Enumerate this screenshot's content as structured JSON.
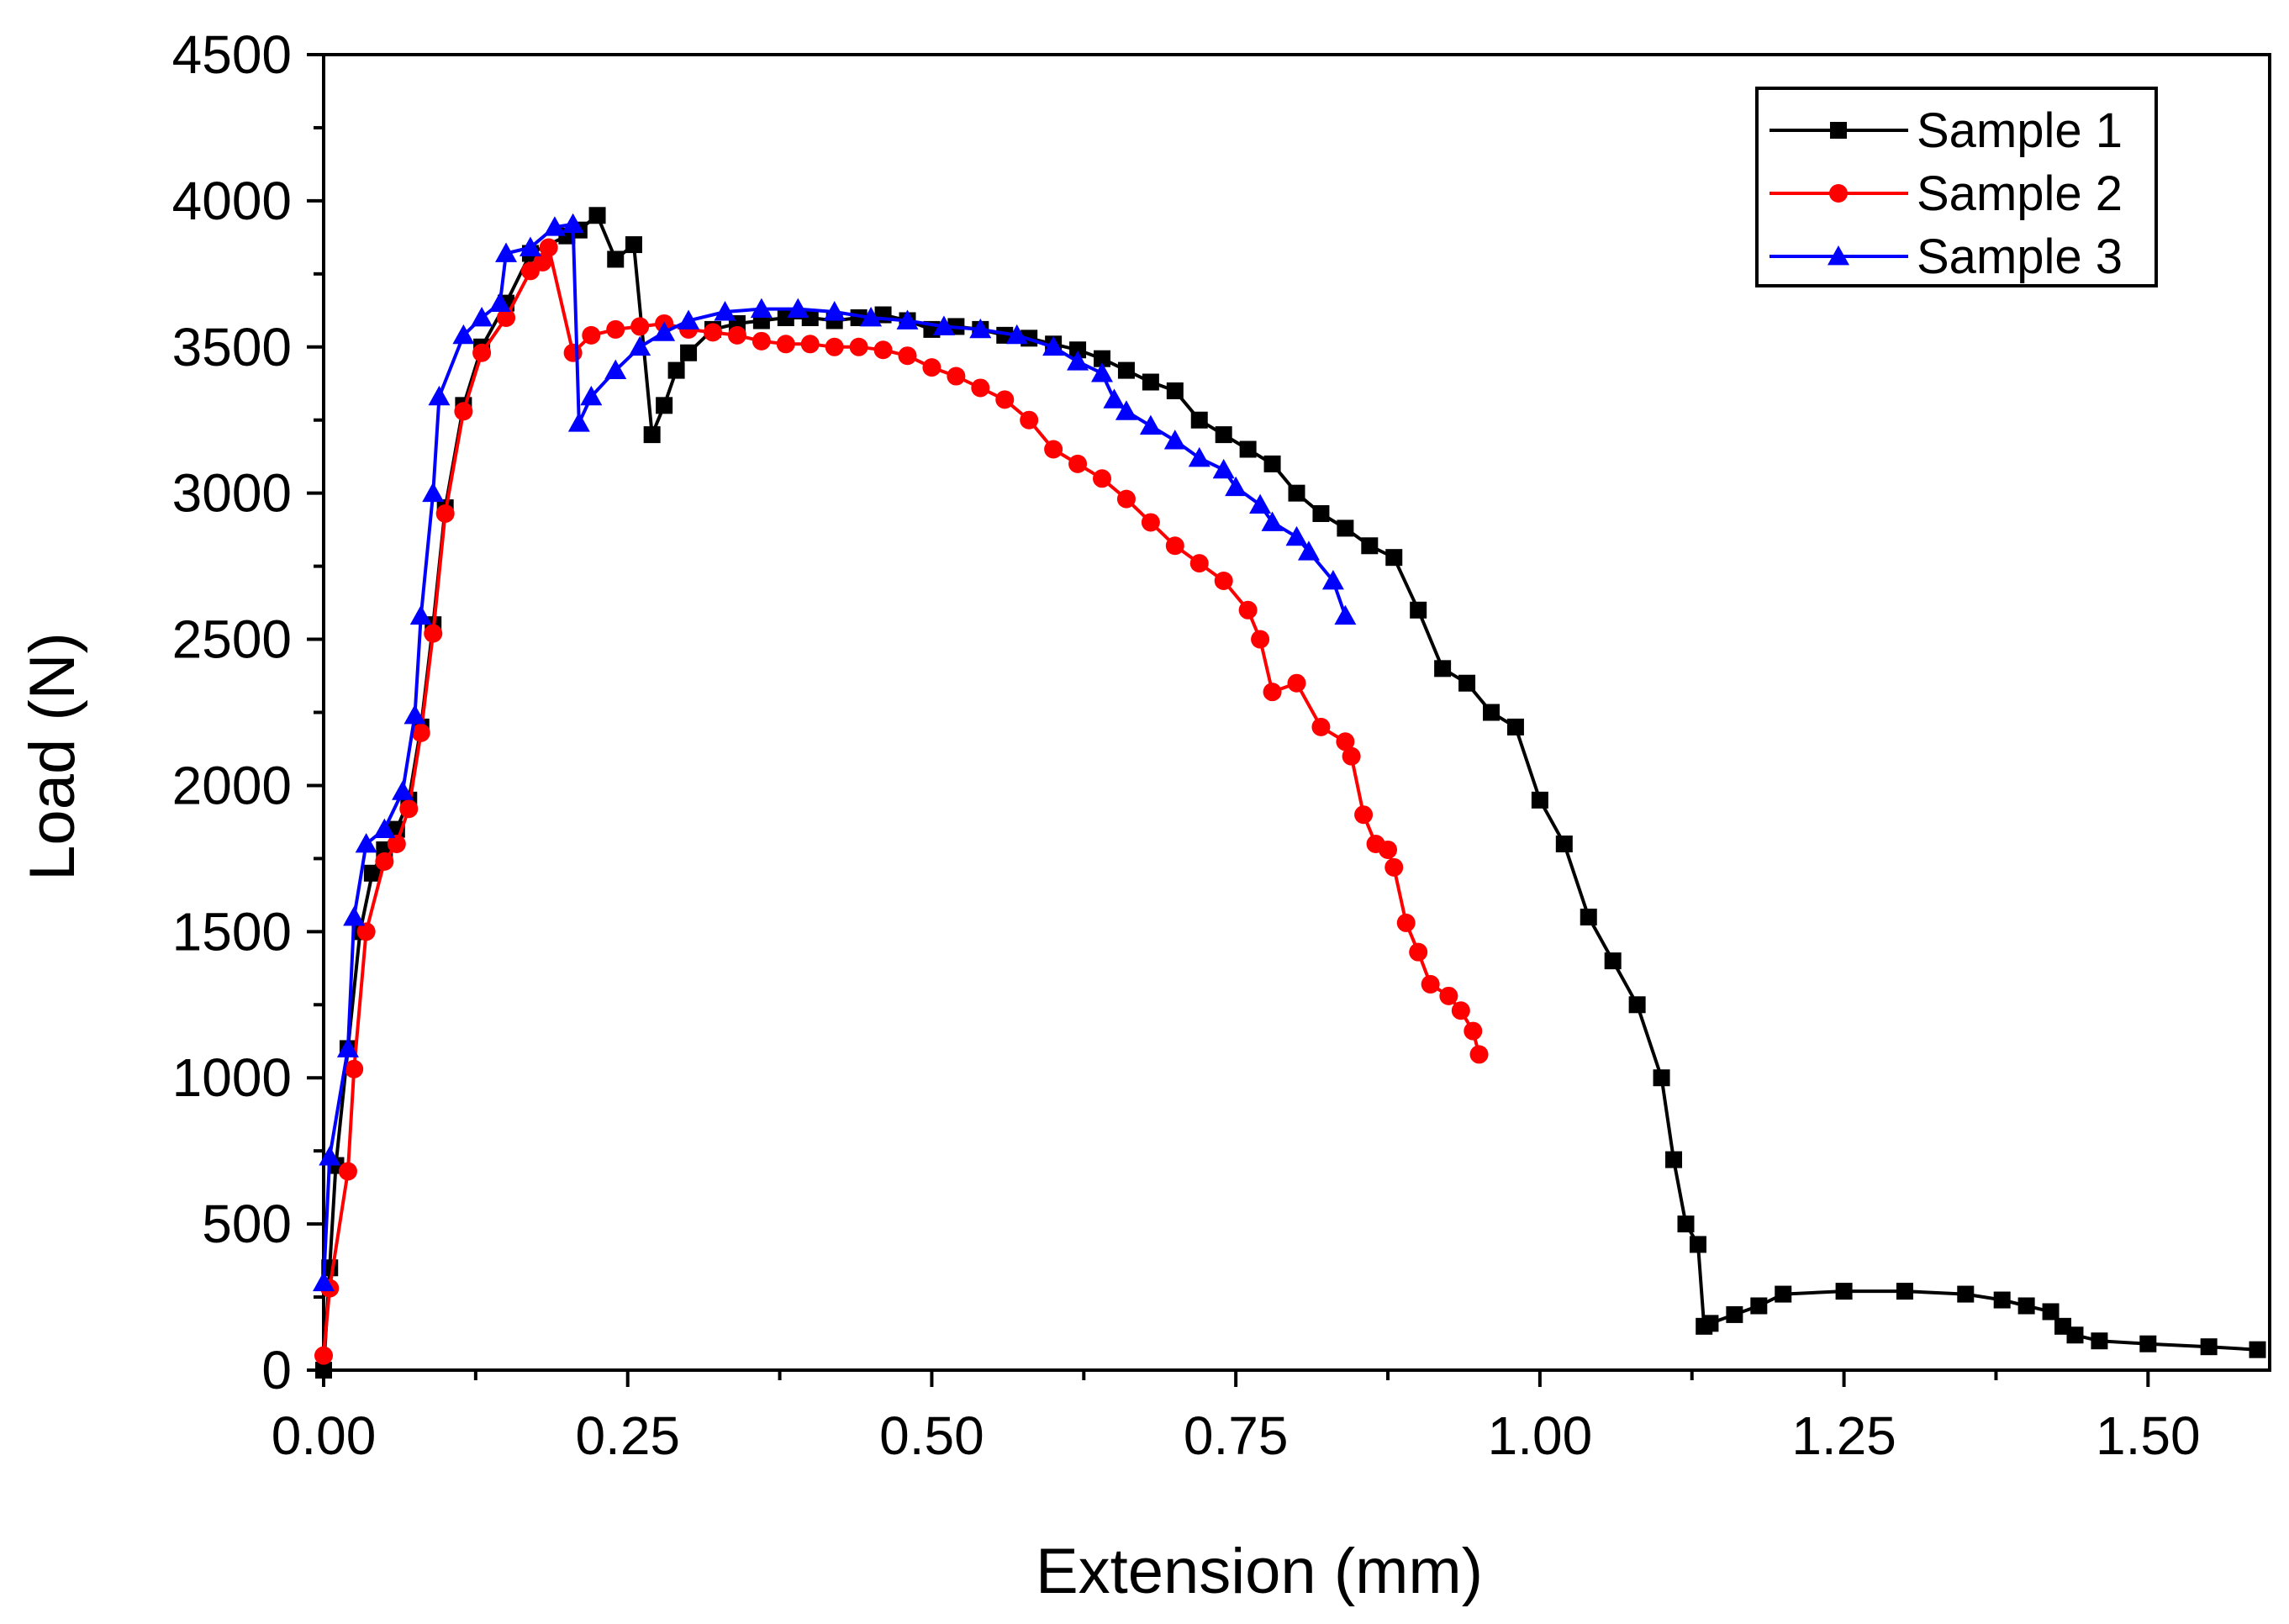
{
  "chart_data": {
    "type": "line",
    "title": "",
    "xlabel": "Extension (mm)",
    "ylabel": "Load (N)",
    "xlim": [
      0,
      1.6
    ],
    "ylim": [
      0,
      4500
    ],
    "xticks": [
      0,
      0.25,
      0.5,
      0.75,
      1.0,
      1.25,
      1.5
    ],
    "xtick_labels": [
      "0.00",
      "0.25",
      "0.50",
      "0.75",
      "1.00",
      "1.25",
      "1.50"
    ],
    "yticks": [
      0,
      500,
      1000,
      1500,
      2000,
      2500,
      3000,
      3500,
      4000,
      4500
    ],
    "ytick_labels": [
      "0",
      "500",
      "1000",
      "1500",
      "2000",
      "2500",
      "3000",
      "3500",
      "4000",
      "4500"
    ],
    "grid": false,
    "legend_position": "top-right",
    "series": [
      {
        "name": "Sample 1",
        "color": "#000000",
        "marker": "square",
        "x": [
          0.0,
          0.005,
          0.01,
          0.02,
          0.03,
          0.04,
          0.05,
          0.06,
          0.07,
          0.08,
          0.09,
          0.1,
          0.115,
          0.13,
          0.15,
          0.17,
          0.2,
          0.21,
          0.225,
          0.24,
          0.255,
          0.27,
          0.28,
          0.29,
          0.3,
          0.32,
          0.34,
          0.36,
          0.38,
          0.4,
          0.42,
          0.44,
          0.46,
          0.48,
          0.5,
          0.52,
          0.54,
          0.56,
          0.58,
          0.6,
          0.62,
          0.64,
          0.66,
          0.68,
          0.7,
          0.72,
          0.74,
          0.76,
          0.78,
          0.8,
          0.82,
          0.84,
          0.86,
          0.88,
          0.9,
          0.92,
          0.94,
          0.96,
          0.98,
          1.0,
          1.02,
          1.04,
          1.06,
          1.08,
          1.1,
          1.11,
          1.12,
          1.13,
          1.135,
          1.14,
          1.16,
          1.18,
          1.2,
          1.25,
          1.3,
          1.35,
          1.38,
          1.4,
          1.42,
          1.43,
          1.44,
          1.46,
          1.5,
          1.55,
          1.59
        ],
        "values": [
          0,
          350,
          700,
          1100,
          1500,
          1700,
          1780,
          1850,
          1950,
          2200,
          2550,
          2950,
          3300,
          3500,
          3650,
          3820,
          3880,
          3900,
          3950,
          3800,
          3850,
          3200,
          3300,
          3420,
          3480,
          3560,
          3580,
          3590,
          3600,
          3600,
          3590,
          3600,
          3610,
          3590,
          3560,
          3570,
          3560,
          3540,
          3530,
          3510,
          3490,
          3460,
          3420,
          3380,
          3350,
          3250,
          3200,
          3150,
          3100,
          3000,
          2930,
          2880,
          2820,
          2780,
          2600,
          2400,
          2350,
          2250,
          2200,
          1950,
          1800,
          1550,
          1400,
          1250,
          1000,
          720,
          500,
          430,
          150,
          160,
          190,
          220,
          260,
          270,
          270,
          260,
          240,
          220,
          200,
          150,
          120,
          100,
          90,
          80,
          70
        ]
      },
      {
        "name": "Sample 2",
        "color": "#ff0000",
        "marker": "circle",
        "x": [
          0.0,
          0.005,
          0.02,
          0.025,
          0.035,
          0.05,
          0.06,
          0.07,
          0.08,
          0.09,
          0.1,
          0.115,
          0.13,
          0.15,
          0.17,
          0.18,
          0.185,
          0.205,
          0.22,
          0.24,
          0.26,
          0.28,
          0.3,
          0.32,
          0.34,
          0.36,
          0.38,
          0.4,
          0.42,
          0.44,
          0.46,
          0.48,
          0.5,
          0.52,
          0.54,
          0.56,
          0.58,
          0.6,
          0.62,
          0.64,
          0.66,
          0.68,
          0.7,
          0.72,
          0.74,
          0.76,
          0.77,
          0.78,
          0.8,
          0.82,
          0.84,
          0.845,
          0.855,
          0.865,
          0.875,
          0.88,
          0.89,
          0.9,
          0.91,
          0.925,
          0.935,
          0.945,
          0.95
        ],
        "values": [
          50,
          280,
          680,
          1030,
          1500,
          1740,
          1800,
          1920,
          2180,
          2520,
          2930,
          3280,
          3480,
          3600,
          3760,
          3790,
          3840,
          3480,
          3540,
          3560,
          3570,
          3580,
          3560,
          3550,
          3540,
          3520,
          3510,
          3510,
          3500,
          3500,
          3490,
          3470,
          3430,
          3400,
          3360,
          3320,
          3250,
          3150,
          3100,
          3050,
          2980,
          2900,
          2820,
          2760,
          2700,
          2600,
          2500,
          2320,
          2350,
          2200,
          2150,
          2100,
          1900,
          1800,
          1780,
          1720,
          1530,
          1430,
          1320,
          1280,
          1230,
          1160,
          1080
        ]
      },
      {
        "name": "Sample 3",
        "color": "#0000ff",
        "marker": "triangle",
        "x": [
          0.0,
          0.005,
          0.02,
          0.025,
          0.035,
          0.05,
          0.065,
          0.075,
          0.08,
          0.09,
          0.095,
          0.115,
          0.13,
          0.145,
          0.15,
          0.17,
          0.19,
          0.205,
          0.21,
          0.22,
          0.24,
          0.26,
          0.28,
          0.3,
          0.33,
          0.36,
          0.39,
          0.42,
          0.45,
          0.48,
          0.51,
          0.54,
          0.57,
          0.6,
          0.62,
          0.64,
          0.65,
          0.66,
          0.68,
          0.7,
          0.72,
          0.74,
          0.75,
          0.77,
          0.78,
          0.8,
          0.81,
          0.83,
          0.84
        ],
        "values": [
          300,
          730,
          1100,
          1550,
          1800,
          1850,
          1980,
          2240,
          2580,
          3000,
          3330,
          3540,
          3600,
          3650,
          3820,
          3840,
          3910,
          3920,
          3240,
          3330,
          3420,
          3500,
          3550,
          3590,
          3620,
          3630,
          3630,
          3620,
          3600,
          3590,
          3570,
          3560,
          3540,
          3500,
          3450,
          3410,
          3320,
          3280,
          3230,
          3180,
          3120,
          3080,
          3020,
          2960,
          2900,
          2850,
          2800,
          2700,
          2580
        ]
      }
    ]
  }
}
